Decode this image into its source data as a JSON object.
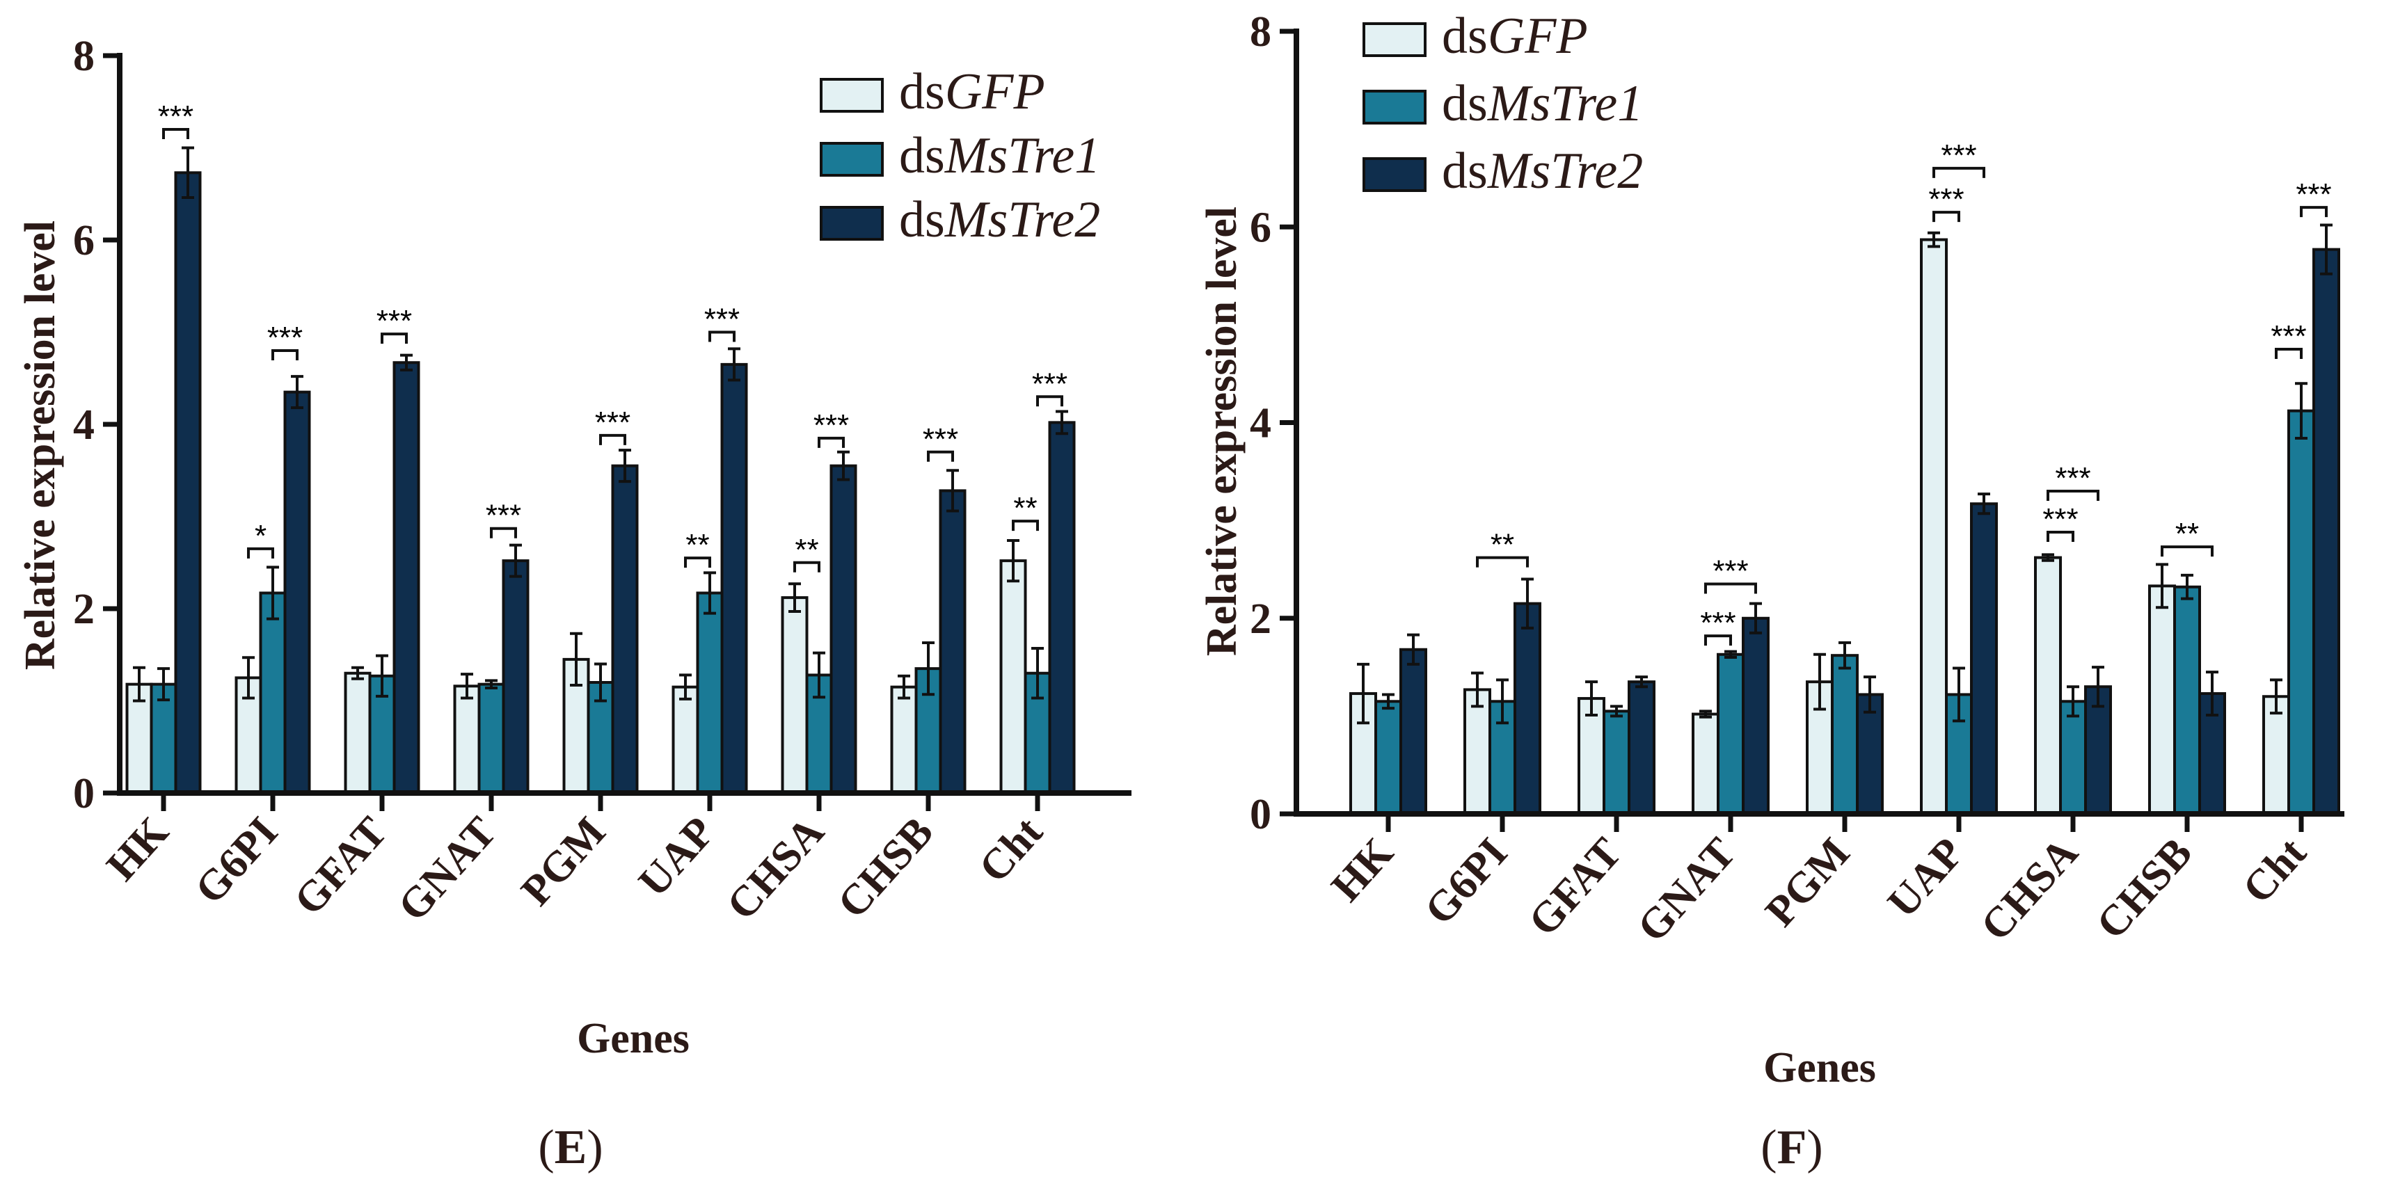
{
  "colors": {
    "dsGFP": "#e3f1f3",
    "dsMsTre1": "#1a7a96",
    "dsMsTre2": "#0f2e4d",
    "ink": "#111111"
  },
  "legend": [
    {
      "prefix": "ds",
      "name": "GFP"
    },
    {
      "prefix": "ds",
      "name": "MsTre1"
    },
    {
      "prefix": "ds",
      "name": "MsTre2"
    }
  ],
  "chart_data": [
    {
      "type": "bar",
      "panel": "E",
      "title": "",
      "xlabel": "Genes",
      "ylabel": "Relative expression level",
      "ylim": [
        0,
        8
      ],
      "yticks": [
        "0",
        "2",
        "4",
        "6",
        "8"
      ],
      "categories": [
        "HK",
        "G6PI",
        "GFAT",
        "GNAT",
        "PGM",
        "UAP",
        "CHSA",
        "CHSB",
        "Cht"
      ],
      "series": [
        {
          "name": "dsGFP",
          "values": [
            1.18,
            1.25,
            1.3,
            1.16,
            1.45,
            1.15,
            2.12,
            1.15,
            2.52
          ],
          "errors": [
            0.18,
            0.22,
            0.06,
            0.13,
            0.28,
            0.13,
            0.15,
            0.12,
            0.22
          ]
        },
        {
          "name": "dsMsTre1",
          "values": [
            1.18,
            2.17,
            1.27,
            1.18,
            1.2,
            2.17,
            1.28,
            1.35,
            1.3
          ],
          "errors": [
            0.17,
            0.28,
            0.22,
            0.04,
            0.2,
            0.22,
            0.24,
            0.28,
            0.27
          ]
        },
        {
          "name": "dsMsTre2",
          "values": [
            6.73,
            4.35,
            4.67,
            2.52,
            3.55,
            4.65,
            3.55,
            3.28,
            4.02
          ],
          "errors": [
            0.27,
            0.17,
            0.08,
            0.17,
            0.17,
            0.17,
            0.15,
            0.22,
            0.12
          ]
        }
      ],
      "significance": [
        {
          "category": 0,
          "from": "dsMsTre1",
          "to": "dsMsTre2",
          "label": "***",
          "y": 7.2
        },
        {
          "category": 1,
          "from": "dsGFP",
          "to": "dsMsTre1",
          "label": "*",
          "y": 2.65
        },
        {
          "category": 1,
          "from": "dsMsTre1",
          "to": "dsMsTre2",
          "label": "***",
          "y": 4.8
        },
        {
          "category": 2,
          "from": "dsMsTre1",
          "to": "dsMsTre2",
          "label": "***",
          "y": 4.98
        },
        {
          "category": 3,
          "from": "dsMsTre1",
          "to": "dsMsTre2",
          "label": "***",
          "y": 2.87
        },
        {
          "category": 4,
          "from": "dsMsTre1",
          "to": "dsMsTre2",
          "label": "***",
          "y": 3.88
        },
        {
          "category": 5,
          "from": "dsGFP",
          "to": "dsMsTre1",
          "label": "**",
          "y": 2.55
        },
        {
          "category": 5,
          "from": "dsMsTre1",
          "to": "dsMsTre2",
          "label": "***",
          "y": 5.0
        },
        {
          "category": 6,
          "from": "dsGFP",
          "to": "dsMsTre1",
          "label": "**",
          "y": 2.5
        },
        {
          "category": 6,
          "from": "dsMsTre1",
          "to": "dsMsTre2",
          "label": "***",
          "y": 3.85
        },
        {
          "category": 7,
          "from": "dsMsTre1",
          "to": "dsMsTre2",
          "label": "***",
          "y": 3.7
        },
        {
          "category": 8,
          "from": "dsGFP",
          "to": "dsMsTre1",
          "label": "**",
          "y": 2.95
        },
        {
          "category": 8,
          "from": "dsMsTre1",
          "to": "dsMsTre2",
          "label": "***",
          "y": 4.3
        }
      ]
    },
    {
      "type": "bar",
      "panel": "F",
      "title": "",
      "xlabel": "Genes",
      "ylabel": "Relative expression level",
      "ylim": [
        0,
        8
      ],
      "yticks": [
        "0",
        "2",
        "4",
        "6",
        "8"
      ],
      "categories": [
        "HK",
        "G6PI",
        "GFAT",
        "GNAT",
        "PGM",
        "UAP",
        "CHSA",
        "CHSB",
        "Cht"
      ],
      "series": [
        {
          "name": "dsGFP",
          "values": [
            1.23,
            1.27,
            1.18,
            1.02,
            1.35,
            5.87,
            2.62,
            2.33,
            1.2
          ],
          "errors": [
            0.3,
            0.17,
            0.17,
            0.03,
            0.28,
            0.07,
            0.03,
            0.22,
            0.17
          ]
        },
        {
          "name": "dsMsTre1",
          "values": [
            1.15,
            1.15,
            1.05,
            1.63,
            1.62,
            1.22,
            1.15,
            2.32,
            4.12
          ],
          "errors": [
            0.07,
            0.22,
            0.05,
            0.03,
            0.13,
            0.27,
            0.15,
            0.12,
            0.28
          ]
        },
        {
          "name": "dsMsTre2",
          "values": [
            1.68,
            2.15,
            1.35,
            2.0,
            1.22,
            3.17,
            1.3,
            1.23,
            5.77
          ],
          "errors": [
            0.15,
            0.25,
            0.05,
            0.15,
            0.18,
            0.1,
            0.2,
            0.22,
            0.25
          ]
        }
      ],
      "significance": [
        {
          "category": 1,
          "from": "dsGFP",
          "to": "dsMsTre2",
          "label": "**",
          "y": 2.62
        },
        {
          "category": 3,
          "from": "dsGFP",
          "to": "dsMsTre1",
          "label": "***",
          "y": 1.82
        },
        {
          "category": 3,
          "from": "dsGFP",
          "to": "dsMsTre2",
          "label": "***",
          "y": 2.35
        },
        {
          "category": 5,
          "from": "dsGFP",
          "to": "dsMsTre1",
          "label": "***",
          "y": 6.15
        },
        {
          "category": 5,
          "from": "dsGFP",
          "to": "dsMsTre2",
          "label": "***",
          "y": 6.6
        },
        {
          "category": 6,
          "from": "dsGFP",
          "to": "dsMsTre1",
          "label": "***",
          "y": 2.88
        },
        {
          "category": 6,
          "from": "dsGFP",
          "to": "dsMsTre2",
          "label": "***",
          "y": 3.3
        },
        {
          "category": 7,
          "from": "dsGFP",
          "to": "dsMsTre2",
          "label": "**",
          "y": 2.73
        },
        {
          "category": 8,
          "from": "dsGFP",
          "to": "dsMsTre1",
          "label": "***",
          "y": 4.75
        },
        {
          "category": 8,
          "from": "dsMsTre1",
          "to": "dsMsTre2",
          "label": "***",
          "y": 6.2
        }
      ]
    }
  ]
}
